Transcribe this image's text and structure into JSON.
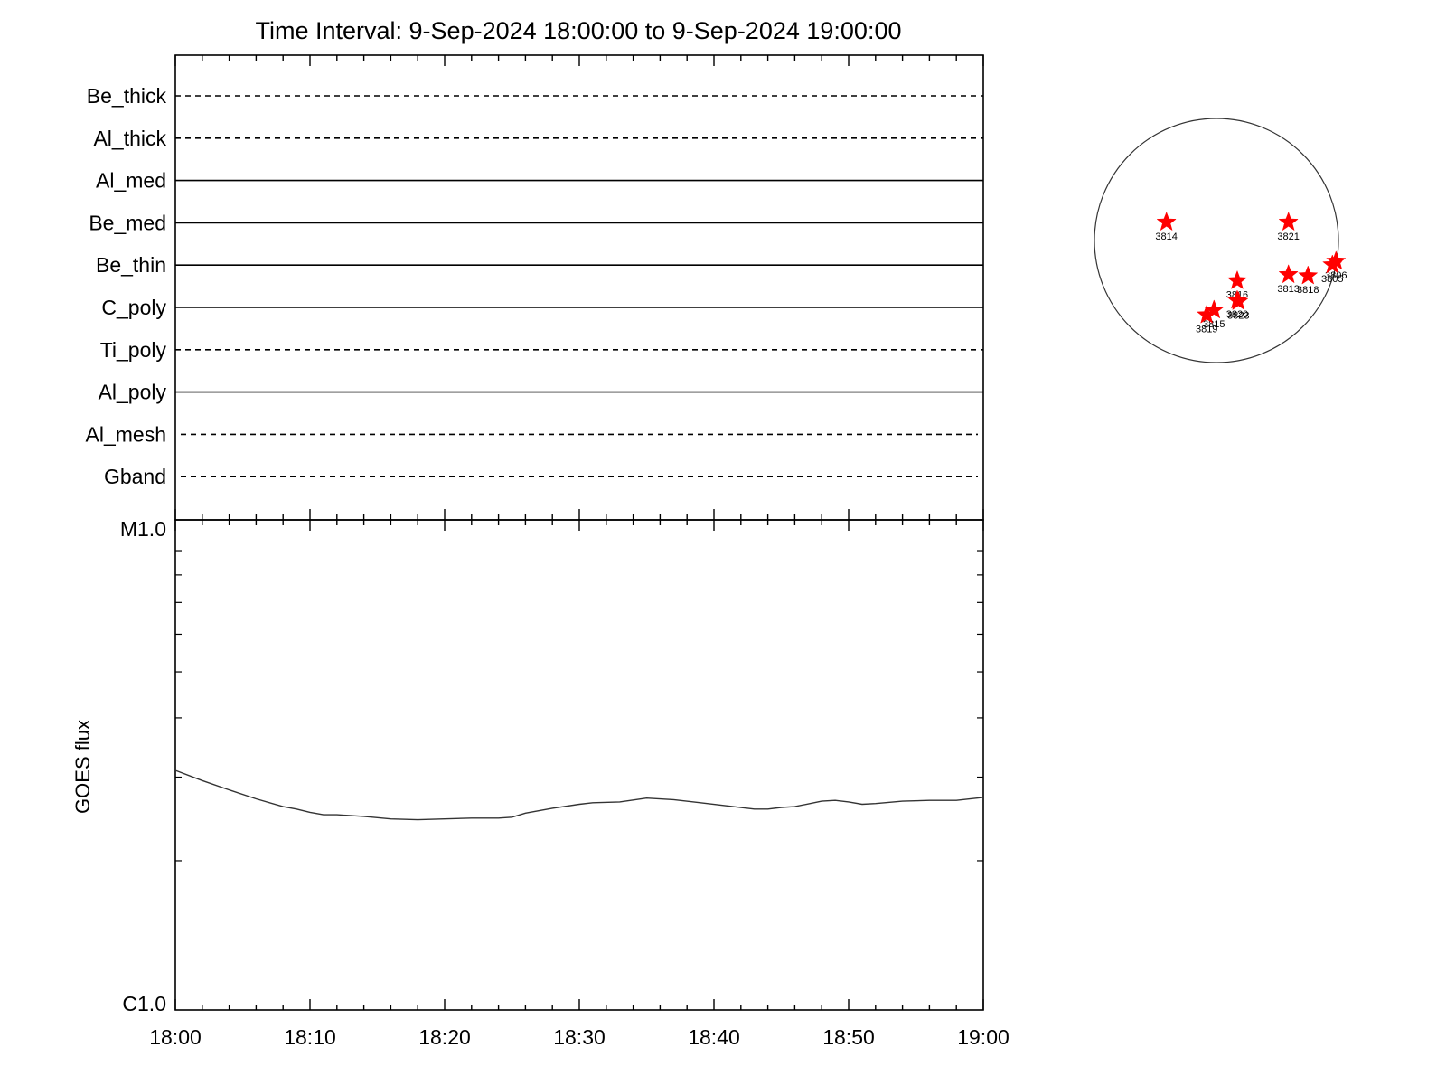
{
  "title": "Time Interval:  9-Sep-2024 18:00:00 to  9-Sep-2024 19:00:00",
  "colors": {
    "axis": "#000000",
    "curve": "#333333",
    "star": "#ff0000",
    "disk": "#333333"
  },
  "channels": [
    {
      "name": "Be_thick",
      "style": "dashed"
    },
    {
      "name": "Al_thick",
      "style": "dashed"
    },
    {
      "name": "Al_med",
      "style": "solid"
    },
    {
      "name": "Be_med",
      "style": "solid"
    },
    {
      "name": "Be_thin",
      "style": "solid"
    },
    {
      "name": "C_poly",
      "style": "solid"
    },
    {
      "name": "Ti_poly",
      "style": "dashed"
    },
    {
      "name": "Al_poly",
      "style": "solid"
    },
    {
      "name": "Al_mesh",
      "style": "dashed"
    },
    {
      "name": "Gband",
      "style": "dashed"
    }
  ],
  "chart_data": {
    "type": "line",
    "title": "Time Interval:  9-Sep-2024 18:00:00 to  9-Sep-2024 19:00:00",
    "xlabel": "",
    "ylabel": "GOES flux",
    "x_tick_labels": [
      "18:00",
      "18:10",
      "18:20",
      "18:30",
      "18:40",
      "18:50",
      "19:00"
    ],
    "xlim": [
      "18:00",
      "19:00"
    ],
    "y_scale": "log",
    "y_tick_labels": [
      "M1.0",
      "C1.0"
    ],
    "ylim": [
      1e-06,
      1e-05
    ],
    "series": [
      {
        "x": [
          "18:00",
          "18:02",
          "18:04",
          "18:06",
          "18:08",
          "18:09",
          "18:10",
          "18:11",
          "18:12",
          "18:14",
          "18:16",
          "18:18",
          "18:20",
          "18:22",
          "18:24",
          "18:25",
          "18:26",
          "18:28",
          "18:30",
          "18:31",
          "18:33",
          "18:35",
          "18:37",
          "18:39",
          "18:41",
          "18:43",
          "18:44",
          "18:45",
          "18:46",
          "18:48",
          "18:49",
          "18:50",
          "18:51",
          "18:52",
          "18:54",
          "18:56",
          "18:58",
          "19:00"
        ],
        "values": [
          3.1e-06,
          2.95e-06,
          2.82e-06,
          2.7e-06,
          2.6e-06,
          2.57e-06,
          2.53e-06,
          2.5e-06,
          2.5e-06,
          2.48e-06,
          2.45e-06,
          2.44e-06,
          2.45e-06,
          2.46e-06,
          2.46e-06,
          2.47e-06,
          2.52e-06,
          2.58e-06,
          2.63e-06,
          2.65e-06,
          2.66e-06,
          2.71e-06,
          2.69e-06,
          2.65e-06,
          2.61e-06,
          2.57e-06,
          2.57e-06,
          2.59e-06,
          2.6e-06,
          2.67e-06,
          2.68e-06,
          2.66e-06,
          2.63e-06,
          2.64e-06,
          2.67e-06,
          2.68e-06,
          2.68e-06,
          2.72e-06
        ]
      }
    ]
  },
  "active_regions": [
    {
      "id": "3814",
      "lon_frac": -0.41,
      "lat_frac": 0.15
    },
    {
      "id": "3821",
      "lon_frac": 0.59,
      "lat_frac": 0.15
    },
    {
      "id": "3816",
      "lon_frac": 0.17,
      "lat_frac": -0.33
    },
    {
      "id": "3813",
      "lon_frac": 0.59,
      "lat_frac": -0.28
    },
    {
      "id": "3818",
      "lon_frac": 0.75,
      "lat_frac": -0.29
    },
    {
      "id": "3806",
      "lon_frac": 0.98,
      "lat_frac": -0.17
    },
    {
      "id": "3805",
      "lon_frac": 0.95,
      "lat_frac": -0.2
    },
    {
      "id": "3820",
      "lon_frac": 0.17,
      "lat_frac": -0.49
    },
    {
      "id": "3823",
      "lon_frac": 0.18,
      "lat_frac": -0.5
    },
    {
      "id": "3815",
      "lon_frac": -0.02,
      "lat_frac": -0.57
    },
    {
      "id": "3819",
      "lon_frac": -0.08,
      "lat_frac": -0.61
    }
  ]
}
